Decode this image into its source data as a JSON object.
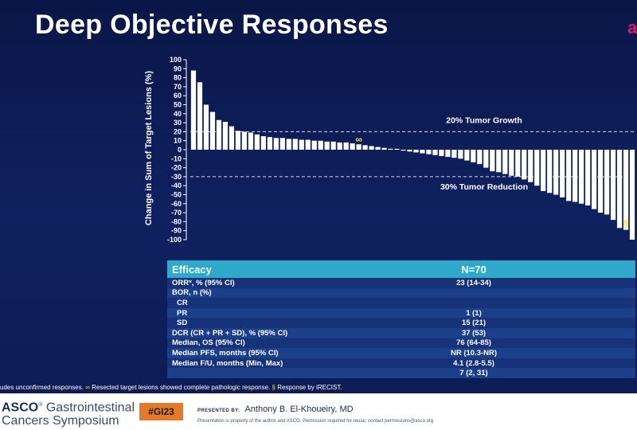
{
  "title": "Deep Objective Responses",
  "edge_mark": "a",
  "chart_data": {
    "type": "bar",
    "ylabel": "Change in Sum of Target Lesions (%)",
    "ylim": [
      -100,
      100
    ],
    "yticks": [
      100,
      90,
      80,
      70,
      60,
      50,
      40,
      30,
      20,
      10,
      0,
      -10,
      -20,
      -30,
      -40,
      -50,
      -60,
      -70,
      -80,
      -90,
      -100
    ],
    "values": [
      88,
      75,
      50,
      42,
      33,
      31,
      26,
      21,
      20,
      19,
      17,
      15,
      14,
      13,
      13,
      12,
      12,
      11,
      11,
      10,
      10,
      9,
      9,
      8,
      8,
      7,
      6,
      5,
      4,
      3,
      2,
      1,
      1,
      -1,
      -2,
      -3,
      -4,
      -5,
      -6,
      -7,
      -8,
      -9,
      -10,
      -12,
      -14,
      -16,
      -20,
      -24,
      -25,
      -27,
      -29,
      -30,
      -33,
      -36,
      -40,
      -46,
      -48,
      -50,
      -53,
      -57,
      -58,
      -60,
      -62,
      -66,
      -70,
      -72,
      -78,
      -87,
      -89,
      -100
    ],
    "reference_lines": [
      {
        "value": 20,
        "label": "20% Tumor Growth"
      },
      {
        "value": -30,
        "label": "30% Tumor Reduction"
      }
    ],
    "annotations": [
      {
        "bar_index": 26,
        "symbol": "∞"
      },
      {
        "bar_index": 68,
        "symbol": "§"
      }
    ]
  },
  "efficacy": {
    "header_label": "Efficacy",
    "header_n": "N=70",
    "rows": [
      {
        "label": "ORR*, % (95% CI)",
        "value": "23 (14-34)",
        "indent": false
      },
      {
        "label": "BOR, n (%)",
        "value": "",
        "indent": false
      },
      {
        "label": "CR",
        "value": "",
        "indent": true
      },
      {
        "label": "PR",
        "value": "1 (1)",
        "indent": true
      },
      {
        "label": "SD",
        "value": "15 (21)",
        "indent": true
      },
      {
        "label": "DCR (CR + PR + SD), % (95% CI)",
        "value": "37 (53)",
        "indent": false
      },
      {
        "label": "Median, OS (95% CI)",
        "value": "76 (64-85)",
        "indent": false
      },
      {
        "label": "Median PFS, months (95% CI)",
        "value": "NR (10.3-NR)",
        "indent": false
      },
      {
        "label": "Median F/U, months (Min, Max)",
        "value": "4.1 (2.8-5.5)",
        "indent": false
      },
      {
        "label": "",
        "value": "7 (2, 31)",
        "indent": false
      }
    ]
  },
  "footnote": {
    "part1": "udes unconfirmed responses.",
    "symbol1": "∞",
    "part2": "Resected target lesions showed complete pathologic response.",
    "symbol2": "§",
    "part3": "Response by iRECIST."
  },
  "footer": {
    "logo_brand": "ASCO",
    "logo_reg": "®",
    "logo_line1_rest": " Gastrointestinal",
    "logo_line2": "Cancers Symposium",
    "hashtag": "#GI23",
    "presented_by_label": "PRESENTED BY:",
    "presenter": "Anthony B. El-Khoueiry, MD",
    "permission": "Presentation is property of the author and ASCO. Permission required for reuse; contact permissions@asco.org"
  },
  "colors": {
    "background": "#0c1a4e",
    "bar": "#ffffff",
    "accent": "#2fa9c9",
    "symbol": "#f2e23c",
    "hashtag": "#e47a28"
  }
}
